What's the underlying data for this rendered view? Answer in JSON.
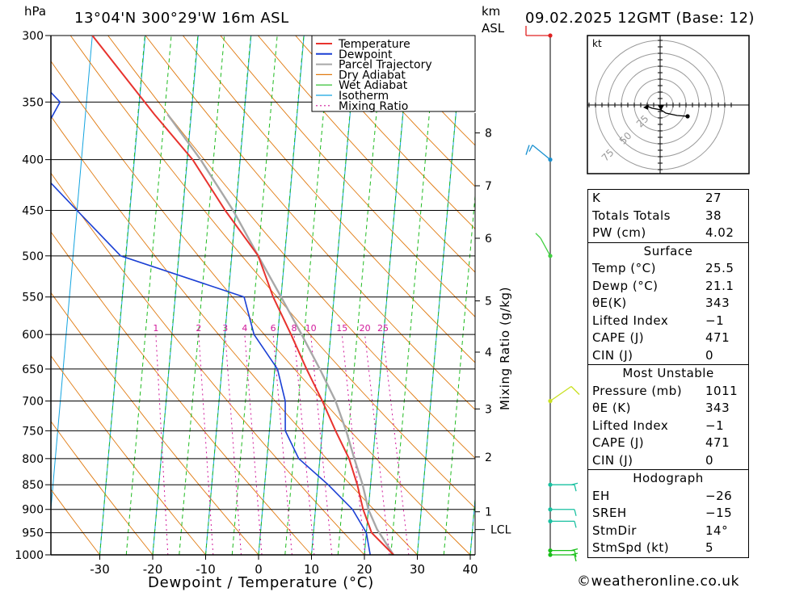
{
  "header": {
    "pressure_unit": "hPa",
    "location": "13°04'N  300°29'W  16m  ASL",
    "km_label": "km",
    "asl_label": "ASL",
    "datetime": "09.02.2025  12GMT  (Base: 12)"
  },
  "colors": {
    "temperature": "#e8332e",
    "dewpoint": "#1a3fd4",
    "parcel": "#a8a8a8",
    "dry_adiabat": "#e07a10",
    "wet_adiabat": "#1fba1f",
    "isotherm": "#14a4e0",
    "mixing_ratio": "#d0189a"
  },
  "chart_data": {
    "type": "line",
    "title": "",
    "xlabel": "Dewpoint / Temperature (°C)",
    "ylabel": "",
    "y2label": "Mixing Ratio (g/kg)",
    "xlim": [
      -40,
      40
    ],
    "x_ticks": [
      "-30",
      "-20",
      "-10",
      "0",
      "10",
      "20",
      "30",
      "40"
    ],
    "pressure_levels": [
      300,
      350,
      400,
      450,
      500,
      550,
      600,
      650,
      700,
      750,
      800,
      850,
      900,
      950,
      1000
    ],
    "pressure_labels": [
      "300",
      "350",
      "400",
      "450",
      "500",
      "550",
      "600",
      "650",
      "700",
      "750",
      "800",
      "850",
      "900",
      "950",
      "1000"
    ],
    "km_ticks": [
      {
        "label": "8",
        "p": 376
      },
      {
        "label": "7",
        "p": 425
      },
      {
        "label": "6",
        "p": 480
      },
      {
        "label": "5",
        "p": 555
      },
      {
        "label": "4",
        "p": 625
      },
      {
        "label": "3",
        "p": 713
      },
      {
        "label": "2",
        "p": 797
      },
      {
        "label": "1",
        "p": 905
      }
    ],
    "lcl": {
      "label": "LCL",
      "p": 943
    },
    "mixing_ratio_labels": [
      "1",
      "2",
      "3",
      "4",
      "6",
      "8",
      "10",
      "15",
      "20",
      "25"
    ],
    "legend": [
      "Temperature",
      "Dewpoint",
      "Parcel Trajectory",
      "Dry Adiabat",
      "Wet Adiabat",
      "Isotherm",
      "Mixing Ratio"
    ],
    "legend_position": "top-right",
    "series": [
      {
        "name": "Temperature",
        "points": [
          [
            1000,
            25.5
          ],
          [
            950,
            21.0
          ],
          [
            900,
            19.0
          ],
          [
            850,
            17.5
          ],
          [
            800,
            15.5
          ],
          [
            750,
            12.5
          ],
          [
            700,
            9.5
          ],
          [
            650,
            6.0
          ],
          [
            600,
            2.5
          ],
          [
            550,
            -1.5
          ],
          [
            500,
            -5.0
          ],
          [
            450,
            -12.0
          ],
          [
            400,
            -19.0
          ],
          [
            360,
            -27.0
          ],
          [
            300,
            -40.0
          ]
        ]
      },
      {
        "name": "Dewpoint",
        "points": [
          [
            1000,
            21.1
          ],
          [
            950,
            20.0
          ],
          [
            900,
            17.0
          ],
          [
            850,
            12.0
          ],
          [
            800,
            6.0
          ],
          [
            750,
            3.0
          ],
          [
            700,
            2.5
          ],
          [
            650,
            0.5
          ],
          [
            600,
            -4.5
          ],
          [
            550,
            -7.0
          ],
          [
            500,
            -31.0
          ],
          [
            450,
            -40.0
          ],
          [
            400,
            -50.0
          ],
          [
            350,
            -45.0
          ],
          [
            300,
            -58.0
          ]
        ]
      },
      {
        "name": "Parcel Trajectory",
        "points": [
          [
            1000,
            25.5
          ],
          [
            943,
            22.0
          ],
          [
            900,
            20.0
          ],
          [
            850,
            18.5
          ],
          [
            800,
            16.5
          ],
          [
            750,
            14.5
          ],
          [
            700,
            12.0
          ],
          [
            650,
            8.5
          ],
          [
            600,
            4.5
          ],
          [
            550,
            0.0
          ],
          [
            500,
            -5.0
          ],
          [
            450,
            -10.5
          ],
          [
            400,
            -17.5
          ],
          [
            360,
            -24.5
          ]
        ]
      }
    ],
    "wind_barbs": [
      {
        "p": 1000,
        "color": "#18c018"
      },
      {
        "p": 990,
        "color": "#18c018"
      },
      {
        "p": 925,
        "color": "#18c0a0"
      },
      {
        "p": 900,
        "color": "#18c0a0"
      },
      {
        "p": 850,
        "color": "#18c0a0"
      },
      {
        "p": 700,
        "color": "#c8e020"
      },
      {
        "p": 500,
        "color": "#40d040"
      },
      {
        "p": 400,
        "color": "#1890d0"
      },
      {
        "p": 300,
        "color": "#e02020"
      }
    ],
    "hodograph": {
      "unit_label": "kt",
      "ring_labels": [
        "25",
        "50",
        "75"
      ]
    }
  },
  "indices": {
    "k_label": "K",
    "k": "27",
    "tt_label": "Totals Totals",
    "tt": "38",
    "pw_label": "PW (cm)",
    "pw": "4.02"
  },
  "surface": {
    "title": "Surface",
    "temp_label": "Temp (°C)",
    "temp": "25.5",
    "dewp_label": "Dewp (°C)",
    "dewp": "21.1",
    "theta_label": "θE(K)",
    "theta": "343",
    "li_label": "Lifted Index",
    "li": "−1",
    "cape_label": "CAPE (J)",
    "cape": "471",
    "cin_label": "CIN (J)",
    "cin": "0"
  },
  "most_unstable": {
    "title": "Most Unstable",
    "pressure_label": "Pressure (mb)",
    "pressure": "1011",
    "theta_label": "θE (K)",
    "theta": "343",
    "li_label": "Lifted Index",
    "li": "−1",
    "cape_label": "CAPE (J)",
    "cape": "471",
    "cin_label": "CIN (J)",
    "cin": "0"
  },
  "hodograph_stats": {
    "title": "Hodograph",
    "eh_label": "EH",
    "eh": "−26",
    "sreh_label": "SREH",
    "sreh": "−15",
    "stmdir_label": "StmDir",
    "stmdir": "14°",
    "stmspd_label": "StmSpd (kt)",
    "stmspd": "5"
  },
  "footer": "©weatheronline.co.uk"
}
